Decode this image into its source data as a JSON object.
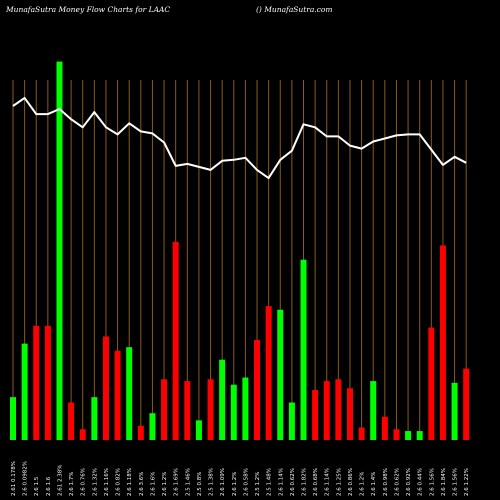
{
  "header": {
    "title": "MunafaSutra  Money Flow  Charts for LAAC",
    "site": "() MunafaSutra.com"
  },
  "chart_data": {
    "type": "bar",
    "title": "MunafaSutra  Money Flow  Charts for LAAC",
    "bars": [
      {
        "value": 12,
        "color": "green"
      },
      {
        "value": 27,
        "color": "green"
      },
      {
        "value": 32,
        "color": "red"
      },
      {
        "value": 32,
        "color": "red"
      },
      {
        "value": 106,
        "color": "green"
      },
      {
        "value": 10.5,
        "color": "red"
      },
      {
        "value": 3,
        "color": "red"
      },
      {
        "value": 12,
        "color": "green"
      },
      {
        "value": 29,
        "color": "red"
      },
      {
        "value": 25,
        "color": "red"
      },
      {
        "value": 26,
        "color": "green"
      },
      {
        "value": 4,
        "color": "red"
      },
      {
        "value": 7.5,
        "color": "green"
      },
      {
        "value": 17,
        "color": "red"
      },
      {
        "value": 55.5,
        "color": "red"
      },
      {
        "value": 16.5,
        "color": "red"
      },
      {
        "value": 5.5,
        "color": "green"
      },
      {
        "value": 17,
        "color": "red"
      },
      {
        "value": 22.5,
        "color": "green"
      },
      {
        "value": 15.5,
        "color": "green"
      },
      {
        "value": 17.5,
        "color": "green"
      },
      {
        "value": 28,
        "color": "red"
      },
      {
        "value": 37.5,
        "color": "red"
      },
      {
        "value": 36.5,
        "color": "green"
      },
      {
        "value": 10.5,
        "color": "green"
      },
      {
        "value": 50.5,
        "color": "green"
      },
      {
        "value": 14,
        "color": "red"
      },
      {
        "value": 16.5,
        "color": "red"
      },
      {
        "value": 17,
        "color": "red"
      },
      {
        "value": 14.5,
        "color": "red"
      },
      {
        "value": 3.5,
        "color": "red"
      },
      {
        "value": 16.5,
        "color": "green"
      },
      {
        "value": 6.5,
        "color": "red"
      },
      {
        "value": 3,
        "color": "red"
      },
      {
        "value": 2.5,
        "color": "green"
      },
      {
        "value": 2.5,
        "color": "green"
      },
      {
        "value": 31.5,
        "color": "red"
      },
      {
        "value": 54.5,
        "color": "red"
      },
      {
        "value": 16,
        "color": "green"
      },
      {
        "value": 20,
        "color": "red"
      }
    ],
    "price_line": [
      100,
      104,
      96,
      96,
      98.5,
      93.5,
      89.5,
      97,
      89.5,
      86,
      91.5,
      87.5,
      86.5,
      82,
      70.5,
      71.5,
      70,
      68.5,
      73,
      73.5,
      74.5,
      68.5,
      64.5,
      73.5,
      78,
      91,
      89.5,
      85,
      85,
      80.5,
      79,
      82.5,
      84,
      85.5,
      86,
      86,
      78.5,
      71,
      75,
      72
    ],
    "tick_labels": [
      "2.61 0.178%",
      "2.6 0.0982%",
      "2.6 1.5",
      "2.6 1.6",
      "2.61 2.38%",
      "2.6 1.7%",
      "2.6 0.76%",
      "2.6 1.32%",
      "2.6 1.16%",
      "2.6 0.82%",
      "2.6 1.18%",
      "2.6 3.6%",
      "2.6 1.6%",
      "2.6 1.2%",
      "2.6 1.69%",
      "2.5 1.46%",
      "2.5 0.8%",
      "2.5 1.38%",
      "2.6 1.09%",
      "2.6 1.2%",
      "2.6 0.58%",
      "2.5 1.2%",
      "2.5 1.48%",
      "2.6 1.14%",
      "2.6 0.62%",
      "2.6 1.82%",
      "2.6 0.68%",
      "2.6 1.14%",
      "2.6 1.25%",
      "2.6 0.86%",
      "2.6 1.2%",
      "2.6 1.4%",
      "2.6 0.98%",
      "2.6 0.62%",
      "2.6 0.92%",
      "2.6 0.44%",
      "2.6 1.56%",
      "2.6 1.84%",
      "2.6 1.56%",
      "2.6 1.22%"
    ],
    "colors": {
      "green": "#00ff00",
      "red": "#ff0000",
      "grid": "#8b5a1e",
      "line": "#ffffff",
      "background": "#000000",
      "text": "#ffffff"
    }
  }
}
